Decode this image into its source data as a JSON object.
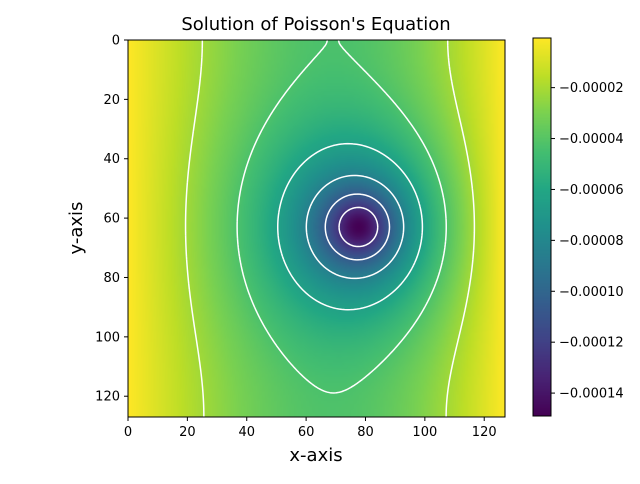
{
  "chart_data": {
    "type": "heatmap",
    "title": "Solution of Poisson's Equation",
    "xlabel": "x-axis",
    "ylabel": "y-axis",
    "x_ticks": [
      "0",
      "20",
      "40",
      "60",
      "80",
      "100",
      "120"
    ],
    "y_ticks": [
      "0",
      "20",
      "40",
      "60",
      "80",
      "100",
      "120"
    ],
    "xlim": [
      0,
      127
    ],
    "ylim": [
      127,
      0
    ],
    "colormap": "viridis",
    "colorbar": {
      "vmin": -0.000149,
      "vmax": -5e-07,
      "ticks": [
        "−0.00002",
        "−0.00004",
        "−0.00006",
        "−0.00008",
        "−0.00010",
        "−0.00012",
        "−0.00014"
      ],
      "tick_values": [
        -2e-05,
        -4e-05,
        -6e-05,
        -8e-05,
        -0.0001,
        -0.00012,
        -0.00014
      ]
    },
    "contours": {
      "style": "dashed",
      "color": "#ffffff",
      "count": 6
    },
    "minimum": {
      "x": 78,
      "y": 63,
      "value": -0.000149
    },
    "grid": false
  }
}
